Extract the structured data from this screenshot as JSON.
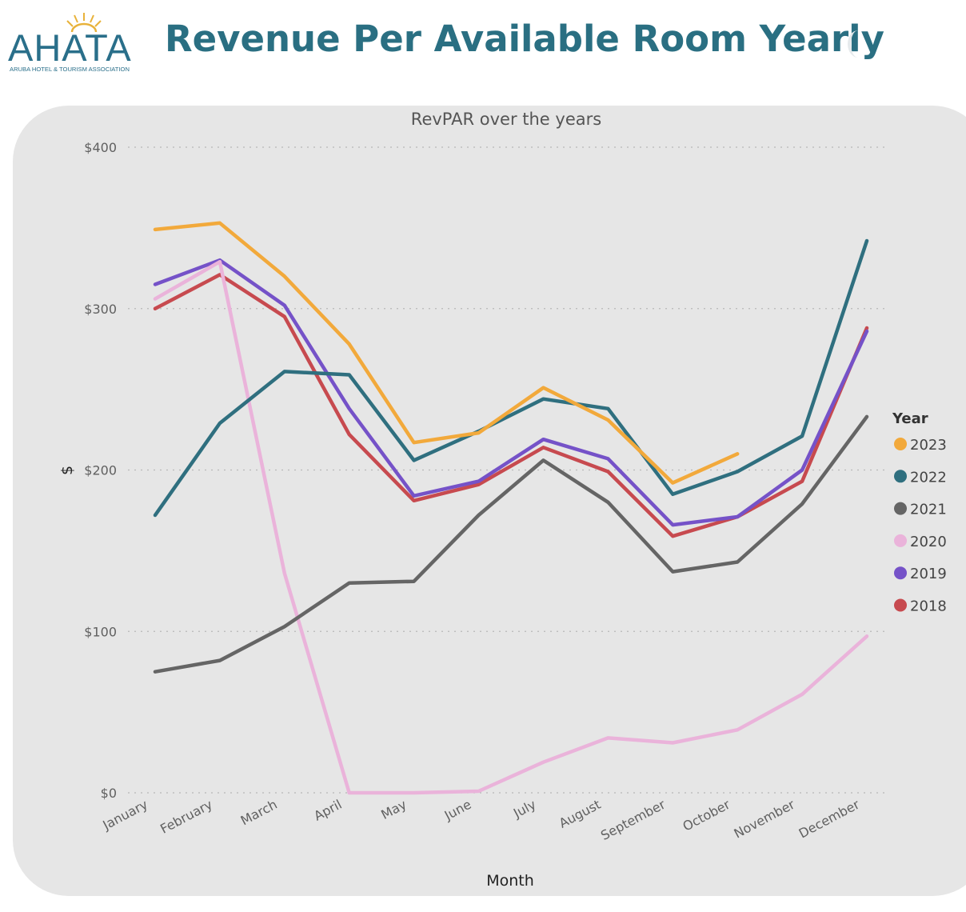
{
  "header": {
    "logo_text": "AHATA",
    "logo_subtext": "ARUBA HOTEL & TOURISM ASSOCIATION",
    "page_title": "Revenue Per Available Room Yearly",
    "colors": {
      "logo": "#2a6f8a",
      "sun": "#e8b23a",
      "title": "#2a6f82"
    }
  },
  "chart_data": {
    "type": "line",
    "title": "RevPAR over the years",
    "xlabel": "Month",
    "ylabel": "$",
    "categories": [
      "January",
      "February",
      "March",
      "April",
      "May",
      "June",
      "July",
      "August",
      "September",
      "October",
      "November",
      "December"
    ],
    "y_ticks": [
      {
        "value": 0,
        "label": "$0"
      },
      {
        "value": 100,
        "label": "$100"
      },
      {
        "value": 200,
        "label": "$200"
      },
      {
        "value": 300,
        "label": "$300"
      },
      {
        "value": 400,
        "label": "$400"
      }
    ],
    "ylim": [
      0,
      400
    ],
    "grid": "horizontal dotted",
    "legend_title": "Year",
    "legend_position": "right",
    "series": [
      {
        "name": "2023",
        "color": "#f2a93b",
        "values": [
          349,
          353,
          320,
          278,
          217,
          223,
          251,
          231,
          192,
          210,
          null,
          null
        ]
      },
      {
        "name": "2022",
        "color": "#2f6f7f",
        "values": [
          172,
          229,
          261,
          259,
          206,
          224,
          244,
          238,
          185,
          199,
          221,
          342
        ]
      },
      {
        "name": "2021",
        "color": "#656565",
        "values": [
          75,
          82,
          103,
          130,
          131,
          172,
          206,
          180,
          137,
          143,
          179,
          233
        ]
      },
      {
        "name": "2020",
        "color": "#eab3da",
        "values": [
          306,
          329,
          136,
          0,
          0,
          1,
          19,
          34,
          31,
          39,
          61,
          97
        ]
      },
      {
        "name": "2019",
        "color": "#7552c8",
        "values": [
          315,
          330,
          302,
          238,
          184,
          193,
          219,
          207,
          166,
          171,
          200,
          286
        ]
      },
      {
        "name": "2018",
        "color": "#c74a4f",
        "values": [
          300,
          321,
          295,
          222,
          181,
          191,
          214,
          199,
          159,
          171,
          193,
          288
        ]
      }
    ]
  }
}
